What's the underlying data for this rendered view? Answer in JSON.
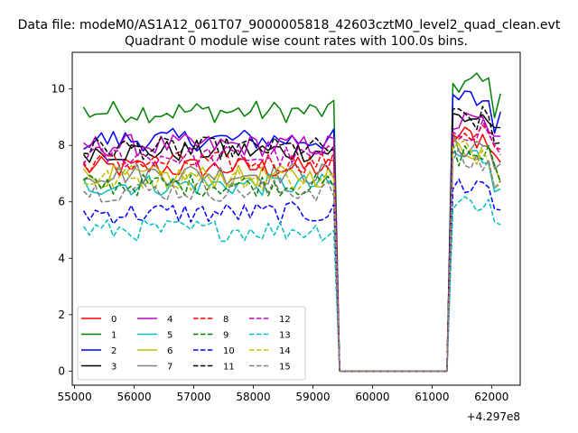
{
  "figure": {
    "suptitle": "Data file: modeM0/AS1A12_061T07_9000005818_42603cztM0_level2_quad_clean.evt",
    "offset_label": "+4.297e8"
  },
  "chart_data": {
    "type": "line",
    "title": "Quadrant 0 module wise count rates with 100.0s bins.",
    "xlabel": "",
    "ylabel": "",
    "x_offset": 429700000,
    "xlim": [
      54960,
      62480
    ],
    "ylim": [
      -0.5,
      11.3
    ],
    "x_ticks": [
      55000,
      56000,
      57000,
      58000,
      59000,
      60000,
      61000,
      62000
    ],
    "y_ticks": [
      0,
      2,
      4,
      6,
      8,
      10
    ],
    "grid": false,
    "legend": {
      "placement": "lower-left",
      "columns": 4
    },
    "segments": [
      {
        "x_start": 55150,
        "x_end": 59350
      },
      {
        "x_start": 59450,
        "x_end": 61250
      },
      {
        "x_start": 61350,
        "x_end": 62150
      }
    ],
    "series": [
      {
        "name": "0",
        "color": "#ff0000",
        "dash": false,
        "base": 7.2,
        "post": 8.3
      },
      {
        "name": "1",
        "color": "#008000",
        "dash": false,
        "base": 9.2,
        "post": 10.2
      },
      {
        "name": "2",
        "color": "#0000ff",
        "dash": false,
        "base": 8.2,
        "post": 9.6
      },
      {
        "name": "3",
        "color": "#000000",
        "dash": false,
        "base": 7.8,
        "post": 9.0
      },
      {
        "name": "4",
        "color": "#bf00bf",
        "dash": false,
        "base": 8.0,
        "post": 8.8
      },
      {
        "name": "5",
        "color": "#00bfbf",
        "dash": false,
        "base": 6.6,
        "post": 7.6
      },
      {
        "name": "6",
        "color": "#bfbf00",
        "dash": false,
        "base": 6.9,
        "post": 7.9
      },
      {
        "name": "7",
        "color": "#808080",
        "dash": false,
        "base": 7.0,
        "post": 8.0
      },
      {
        "name": "8",
        "color": "#ff0000",
        "dash": true,
        "base": 7.4,
        "post": 8.5
      },
      {
        "name": "9",
        "color": "#008000",
        "dash": true,
        "base": 6.6,
        "post": 7.7
      },
      {
        "name": "10",
        "color": "#0000ff",
        "dash": true,
        "base": 5.6,
        "post": 6.6
      },
      {
        "name": "11",
        "color": "#000000",
        "dash": true,
        "base": 7.9,
        "post": 8.9
      },
      {
        "name": "12",
        "color": "#bf00bf",
        "dash": true,
        "base": 7.6,
        "post": 8.6
      },
      {
        "name": "13",
        "color": "#00bfbf",
        "dash": true,
        "base": 5.0,
        "post": 6.0
      },
      {
        "name": "14",
        "color": "#bfbf00",
        "dash": true,
        "base": 6.8,
        "post": 7.8
      },
      {
        "name": "15",
        "color": "#808080",
        "dash": true,
        "base": 6.4,
        "post": 7.4
      }
    ]
  }
}
